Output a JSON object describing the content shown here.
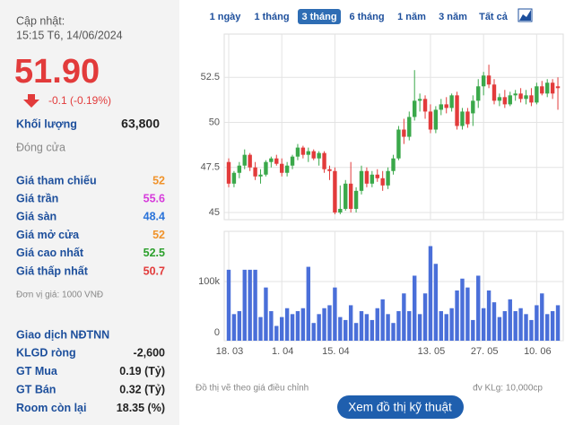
{
  "panel": {
    "update_label": "Cập nhật:",
    "update_time": "15:15 T6, 14/06/2024",
    "price": "51.90",
    "change": "-0.1 (-0.19%)",
    "volume_label": "Khối lượng",
    "volume": "63,800",
    "status": "Đóng cửa",
    "prices": [
      {
        "label": "Giá tham chiếu",
        "value": "52",
        "color": "#f0932b"
      },
      {
        "label": "Giá trần",
        "value": "55.6",
        "color": "#d63adb"
      },
      {
        "label": "Giá sàn",
        "value": "48.4",
        "color": "#2a73d9"
      },
      {
        "label": "Giá mở cửa",
        "value": "52",
        "color": "#f0932b"
      },
      {
        "label": "Giá cao nhất",
        "value": "52.5",
        "color": "#2ca02c"
      },
      {
        "label": "Giá thấp nhất",
        "value": "50.7",
        "color": "#e23b3b"
      }
    ],
    "unit": "Đơn vị giá: 1000 VNĐ",
    "foreign": {
      "title": "Giao dịch NĐTNN",
      "rows": [
        {
          "label": "KLGD ròng",
          "value": "-2,600"
        },
        {
          "label": "GT Mua",
          "value": "0.19 (Tỷ)"
        },
        {
          "label": "GT Bán",
          "value": "0.32 (Tỷ)"
        },
        {
          "label": "Room còn lại",
          "value": "18.35 (%)"
        }
      ]
    }
  },
  "tabs": [
    "1 ngày",
    "1 tháng",
    "3 tháng",
    "6 tháng",
    "1 năm",
    "3 năm",
    "Tất cả"
  ],
  "active_tab": 2,
  "footer": {
    "note": "Đồ thị vẽ theo giá điều chỉnh",
    "unit": "đv KLg: 10,000cp",
    "button": "Xem đồ thị kỹ thuật"
  },
  "chart_data": [
    {
      "type": "candlestick",
      "open": [
        47.8,
        46.6,
        47.2,
        47.6,
        48.2,
        47.5,
        47.0,
        47.1,
        47.8,
        48.0,
        47.7,
        47.2,
        47.6,
        48.1,
        48.6,
        48.2,
        48.4,
        48.0,
        48.3,
        47.4,
        47.3,
        45.0,
        45.2,
        46.6,
        45.2,
        46.2,
        47.3,
        46.6,
        47.1,
        46.9,
        46.5,
        47.3,
        48.0,
        49.6,
        49.2,
        50.3,
        51.2,
        51.3,
        50.6,
        49.6,
        50.7,
        51.0,
        50.8,
        51.5,
        49.8,
        50.6,
        50.5,
        51.2,
        52.0,
        52.6,
        52.1,
        51.2,
        51.4,
        51.0,
        51.5,
        51.6,
        51.3,
        51.5,
        51.1,
        52.0,
        51.6,
        52.2,
        52.0
      ],
      "high": [
        48.0,
        47.3,
        47.8,
        48.5,
        48.3,
        47.8,
        47.4,
        47.9,
        48.1,
        48.2,
        48.0,
        47.8,
        48.2,
        48.8,
        48.7,
        48.6,
        48.5,
        48.4,
        48.4,
        47.6,
        47.5,
        46.5,
        46.8,
        47.8,
        46.4,
        47.6,
        47.5,
        47.3,
        47.4,
        47.3,
        47.5,
        48.2,
        49.8,
        50.2,
        50.6,
        52.9,
        51.6,
        51.5,
        51.0,
        50.9,
        51.3,
        51.4,
        51.6,
        51.7,
        50.8,
        50.8,
        51.5,
        52.4,
        52.8,
        53.2,
        52.4,
        51.6,
        51.8,
        51.7,
        51.8,
        51.9,
        51.8,
        51.9,
        52.2,
        52.3,
        52.4,
        52.4,
        52.5
      ],
      "low": [
        46.4,
        46.4,
        46.9,
        47.4,
        47.3,
        46.8,
        46.6,
        47.0,
        47.5,
        47.6,
        47.0,
        47.0,
        47.4,
        47.9,
        48.0,
        47.8,
        47.9,
        47.6,
        47.2,
        46.8,
        44.9,
        44.9,
        45.1,
        45.0,
        45.0,
        46.0,
        46.4,
        46.4,
        46.7,
        46.2,
        46.3,
        47.1,
        47.9,
        48.8,
        49.0,
        50.1,
        50.6,
        50.2,
        49.4,
        49.4,
        50.4,
        50.5,
        50.6,
        49.6,
        49.6,
        49.7,
        49.8,
        50.8,
        51.5,
        51.9,
        51.0,
        50.9,
        50.8,
        50.9,
        51.2,
        51.1,
        51.0,
        50.9,
        51.0,
        51.5,
        51.4,
        51.3,
        50.7
      ],
      "close": [
        46.6,
        47.2,
        47.6,
        48.2,
        47.5,
        47.0,
        47.1,
        47.8,
        48.0,
        47.7,
        47.2,
        47.6,
        48.1,
        48.6,
        48.2,
        48.4,
        48.0,
        48.3,
        47.4,
        47.3,
        45.0,
        45.2,
        46.6,
        45.2,
        46.2,
        47.3,
        46.6,
        47.1,
        46.9,
        46.5,
        47.3,
        48.0,
        49.6,
        49.2,
        50.3,
        51.2,
        51.3,
        50.6,
        49.6,
        50.7,
        51.0,
        50.8,
        51.5,
        49.8,
        50.6,
        49.9,
        51.2,
        52.0,
        52.6,
        52.1,
        51.2,
        51.4,
        51.0,
        51.5,
        51.6,
        51.3,
        51.5,
        51.1,
        52.0,
        51.6,
        52.2,
        51.6,
        51.9
      ],
      "color_up": "#3aa84a",
      "color_down": "#e23b3b",
      "ylim": [
        44.6,
        54.9
      ],
      "yticks": [
        45,
        47.5,
        50,
        52.5
      ],
      "grid": true
    },
    {
      "type": "bar",
      "categories": [
        "18. 03",
        null,
        null,
        null,
        null,
        null,
        null,
        null,
        null,
        null,
        "1. 04",
        null,
        null,
        null,
        null,
        null,
        null,
        null,
        null,
        null,
        "15. 04",
        null,
        null,
        null,
        null,
        null,
        null,
        null,
        null,
        null,
        null,
        null,
        null,
        null,
        null,
        null,
        null,
        null,
        "13. 05",
        null,
        null,
        null,
        null,
        null,
        null,
        null,
        null,
        null,
        "27. 05",
        null,
        null,
        null,
        null,
        null,
        null,
        null,
        null,
        null,
        "10. 06",
        null,
        null,
        null,
        null
      ],
      "values": [
        120000,
        45000,
        50000,
        120000,
        120000,
        120000,
        40000,
        90000,
        50000,
        25000,
        40000,
        55000,
        45000,
        50000,
        55000,
        125000,
        30000,
        45000,
        55000,
        60000,
        90000,
        40000,
        35000,
        60000,
        30000,
        50000,
        45000,
        35000,
        55000,
        70000,
        45000,
        30000,
        50000,
        80000,
        50000,
        110000,
        45000,
        80000,
        160000,
        130000,
        50000,
        45000,
        55000,
        85000,
        105000,
        90000,
        35000,
        110000,
        55000,
        85000,
        65000,
        40000,
        50000,
        70000,
        50000,
        55000,
        45000,
        35000,
        60000,
        80000,
        45000,
        50000,
        60000
      ],
      "color": "#4a6fd9",
      "ylim": [
        0,
        185000
      ],
      "yticks": [
        0,
        {
          "value": 100000,
          "label": "100k"
        }
      ],
      "grid": true
    }
  ]
}
